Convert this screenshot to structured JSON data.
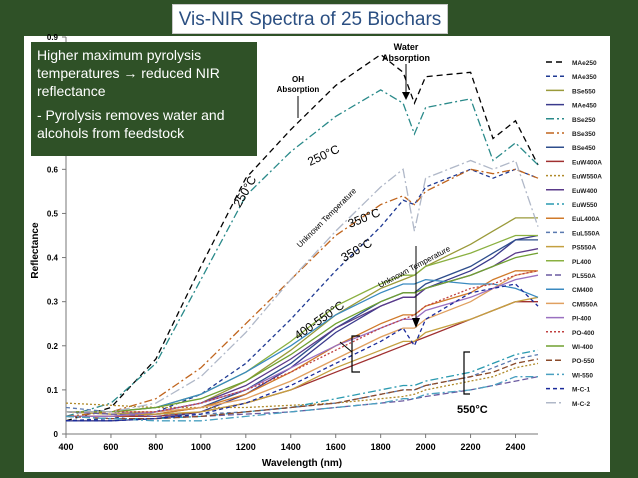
{
  "header": {
    "title": "Vis-NIR Spectra of 25 Biochars"
  },
  "callout": {
    "line1": "Higher maximum pyrolysis temperatures → reduced NIR reflectance",
    "line2": "- Pyrolysis removes water and alcohols from feedstock"
  },
  "chart_data": {
    "type": "line",
    "title": "Vis-NIR Spectra of 25 Biochars",
    "xlabel": "Wavelength (nm)",
    "ylabel": "Reflectance",
    "xlim": [
      400,
      2500
    ],
    "ylim": [
      0,
      0.9
    ],
    "xticks": [
      400,
      600,
      800,
      1000,
      1200,
      1400,
      1600,
      1800,
      2000,
      2200,
      2400
    ],
    "yticks": [
      0,
      0.1,
      0.2,
      0.3,
      0.4,
      0.5,
      0.6,
      0.7,
      0.8,
      0.9
    ],
    "ytick_labels": [
      "0",
      "0.1",
      "0.2",
      "0.3",
      "0.4",
      "0.5",
      "0.6",
      "0.7",
      "0.8",
      "0.9"
    ],
    "grid": false,
    "legend_position": "right",
    "x": [
      400,
      600,
      800,
      1000,
      1200,
      1400,
      1600,
      1800,
      1900,
      1950,
      2000,
      2200,
      2300,
      2400,
      2500
    ],
    "series": [
      {
        "name": "MAe250",
        "color": "#000000",
        "dash": "6,4",
        "values": [
          0.03,
          0.06,
          0.17,
          0.38,
          0.58,
          0.69,
          0.79,
          0.86,
          0.82,
          0.75,
          0.81,
          0.82,
          0.67,
          0.71,
          0.61
        ]
      },
      {
        "name": "MAe350",
        "color": "#1f3a93",
        "dash": "4,3",
        "values": [
          0.03,
          0.035,
          0.05,
          0.09,
          0.16,
          0.26,
          0.37,
          0.47,
          0.53,
          0.52,
          0.56,
          0.6,
          0.58,
          0.6,
          0.58
        ]
      },
      {
        "name": "BSe550",
        "color": "#9a9a3a",
        "dash": "",
        "values": [
          0.05,
          0.045,
          0.05,
          0.07,
          0.12,
          0.19,
          0.27,
          0.33,
          0.35,
          0.36,
          0.38,
          0.43,
          0.46,
          0.49,
          0.49
        ]
      },
      {
        "name": "MAe450",
        "color": "#3a3a8c",
        "dash": "",
        "values": [
          0.03,
          0.03,
          0.035,
          0.05,
          0.09,
          0.15,
          0.23,
          0.29,
          0.31,
          0.31,
          0.33,
          0.37,
          0.4,
          0.44,
          0.45
        ]
      },
      {
        "name": "BSe250",
        "color": "#2a8a8a",
        "dash": "8,3,2,3",
        "values": [
          0.04,
          0.07,
          0.16,
          0.35,
          0.54,
          0.64,
          0.72,
          0.78,
          0.75,
          0.68,
          0.74,
          0.76,
          0.62,
          0.66,
          0.61
        ]
      },
      {
        "name": "BSe350",
        "color": "#c0651e",
        "dash": "8,3,2,3",
        "values": [
          0.04,
          0.05,
          0.08,
          0.15,
          0.25,
          0.35,
          0.45,
          0.52,
          0.54,
          0.52,
          0.55,
          0.6,
          0.59,
          0.6,
          0.58
        ]
      },
      {
        "name": "BSe450",
        "color": "#2e4e8c",
        "dash": "",
        "values": [
          0.04,
          0.04,
          0.045,
          0.06,
          0.1,
          0.16,
          0.24,
          0.3,
          0.32,
          0.32,
          0.34,
          0.38,
          0.41,
          0.44,
          0.44
        ]
      },
      {
        "name": "EuW400A",
        "color": "#a03030",
        "dash": "",
        "values": [
          0.04,
          0.04,
          0.04,
          0.05,
          0.07,
          0.1,
          0.14,
          0.18,
          0.2,
          0.21,
          0.22,
          0.26,
          0.28,
          0.3,
          0.3
        ]
      },
      {
        "name": "EuW550A",
        "color": "#b08a2a",
        "dash": "2,2",
        "values": [
          0.07,
          0.065,
          0.06,
          0.06,
          0.06,
          0.065,
          0.07,
          0.08,
          0.085,
          0.09,
          0.1,
          0.12,
          0.13,
          0.15,
          0.16
        ]
      },
      {
        "name": "EuW400",
        "color": "#5a3a8a",
        "dash": "",
        "values": [
          0.04,
          0.04,
          0.05,
          0.07,
          0.11,
          0.17,
          0.24,
          0.29,
          0.31,
          0.31,
          0.33,
          0.36,
          0.38,
          0.41,
          0.42
        ]
      },
      {
        "name": "EuW550",
        "color": "#2a9ab0",
        "dash": "8,3,2,3",
        "values": [
          0.04,
          0.035,
          0.035,
          0.04,
          0.05,
          0.06,
          0.08,
          0.1,
          0.11,
          0.11,
          0.12,
          0.14,
          0.16,
          0.18,
          0.19
        ]
      },
      {
        "name": "EuL400A",
        "color": "#d07a2a",
        "dash": "",
        "values": [
          0.04,
          0.04,
          0.045,
          0.06,
          0.09,
          0.14,
          0.2,
          0.25,
          0.27,
          0.27,
          0.29,
          0.32,
          0.35,
          0.37,
          0.37
        ]
      },
      {
        "name": "EuL550A",
        "color": "#5a7ab0",
        "dash": "4,3",
        "values": [
          0.06,
          0.05,
          0.045,
          0.045,
          0.05,
          0.06,
          0.07,
          0.09,
          0.1,
          0.1,
          0.11,
          0.13,
          0.15,
          0.17,
          0.18
        ]
      },
      {
        "name": "PS550A",
        "color": "#c4a040",
        "dash": "",
        "values": [
          0.05,
          0.045,
          0.045,
          0.05,
          0.07,
          0.1,
          0.15,
          0.19,
          0.21,
          0.21,
          0.23,
          0.26,
          0.28,
          0.3,
          0.31
        ]
      },
      {
        "name": "PL400",
        "color": "#8ab040",
        "dash": "",
        "values": [
          0.05,
          0.05,
          0.06,
          0.09,
          0.14,
          0.21,
          0.29,
          0.34,
          0.36,
          0.36,
          0.38,
          0.41,
          0.43,
          0.45,
          0.45
        ]
      },
      {
        "name": "PL550A",
        "color": "#6a5aa0",
        "dash": "6,3",
        "values": [
          0.05,
          0.045,
          0.04,
          0.04,
          0.045,
          0.05,
          0.06,
          0.07,
          0.075,
          0.08,
          0.085,
          0.1,
          0.11,
          0.12,
          0.13
        ]
      },
      {
        "name": "CM400",
        "color": "#3a8ac0",
        "dash": "",
        "values": [
          0.05,
          0.05,
          0.06,
          0.09,
          0.14,
          0.2,
          0.27,
          0.32,
          0.34,
          0.34,
          0.35,
          0.34,
          0.34,
          0.33,
          0.31
        ]
      },
      {
        "name": "CM550A",
        "color": "#e0a060",
        "dash": "",
        "values": [
          0.05,
          0.05,
          0.05,
          0.06,
          0.08,
          0.12,
          0.17,
          0.22,
          0.24,
          0.24,
          0.26,
          0.3,
          0.33,
          0.36,
          0.37
        ]
      },
      {
        "name": "PI-400",
        "color": "#9a70c0",
        "dash": "",
        "values": [
          0.04,
          0.04,
          0.05,
          0.07,
          0.1,
          0.15,
          0.2,
          0.24,
          0.26,
          0.26,
          0.28,
          0.31,
          0.33,
          0.35,
          0.36
        ]
      },
      {
        "name": "PO-400",
        "color": "#c04040",
        "dash": "2,2",
        "values": [
          0.05,
          0.05,
          0.05,
          0.07,
          0.1,
          0.14,
          0.19,
          0.24,
          0.26,
          0.27,
          0.29,
          0.33,
          0.34,
          0.36,
          0.37
        ]
      },
      {
        "name": "WI-400",
        "color": "#70a030",
        "dash": "",
        "values": [
          0.05,
          0.05,
          0.06,
          0.08,
          0.12,
          0.18,
          0.25,
          0.3,
          0.32,
          0.32,
          0.33,
          0.36,
          0.38,
          0.4,
          0.41
        ]
      },
      {
        "name": "PO-550",
        "color": "#8a4a2a",
        "dash": "6,3",
        "values": [
          0.04,
          0.035,
          0.035,
          0.04,
          0.05,
          0.06,
          0.07,
          0.09,
          0.1,
          0.1,
          0.11,
          0.13,
          0.14,
          0.16,
          0.17
        ]
      },
      {
        "name": "WI-550",
        "color": "#4aa0c0",
        "dash": "8,3,2,3",
        "values": [
          0.04,
          0.035,
          0.03,
          0.03,
          0.04,
          0.05,
          0.06,
          0.07,
          0.08,
          0.08,
          0.09,
          0.1,
          0.11,
          0.13,
          0.13
        ]
      },
      {
        "name": "M-C-1",
        "color": "#1a2a9a",
        "dash": "4,3",
        "values": [
          0.03,
          0.03,
          0.035,
          0.045,
          0.07,
          0.11,
          0.16,
          0.21,
          0.24,
          0.2,
          0.26,
          0.32,
          0.33,
          0.34,
          0.29
        ]
      },
      {
        "name": "M-C-2",
        "color": "#b0b8c8",
        "dash": "10,3,2,3",
        "values": [
          0.05,
          0.05,
          0.07,
          0.13,
          0.23,
          0.35,
          0.46,
          0.56,
          0.6,
          0.46,
          0.58,
          0.62,
          0.6,
          0.62,
          0.47
        ]
      }
    ],
    "annotations": [
      {
        "id": "water",
        "text": "Water Absorption"
      },
      {
        "id": "oh",
        "text": "OH Absorption"
      },
      {
        "id": "t250a",
        "text": "250°C"
      },
      {
        "id": "t250b",
        "text": "250°C"
      },
      {
        "id": "unk1",
        "text": "Unknown Temperature"
      },
      {
        "id": "t350a",
        "text": "350°C"
      },
      {
        "id": "t350b",
        "text": "350°C"
      },
      {
        "id": "unk2",
        "text": "Unknown Temperature"
      },
      {
        "id": "t400550",
        "text": "400-550°C"
      },
      {
        "id": "t550",
        "text": "550°C"
      }
    ]
  }
}
